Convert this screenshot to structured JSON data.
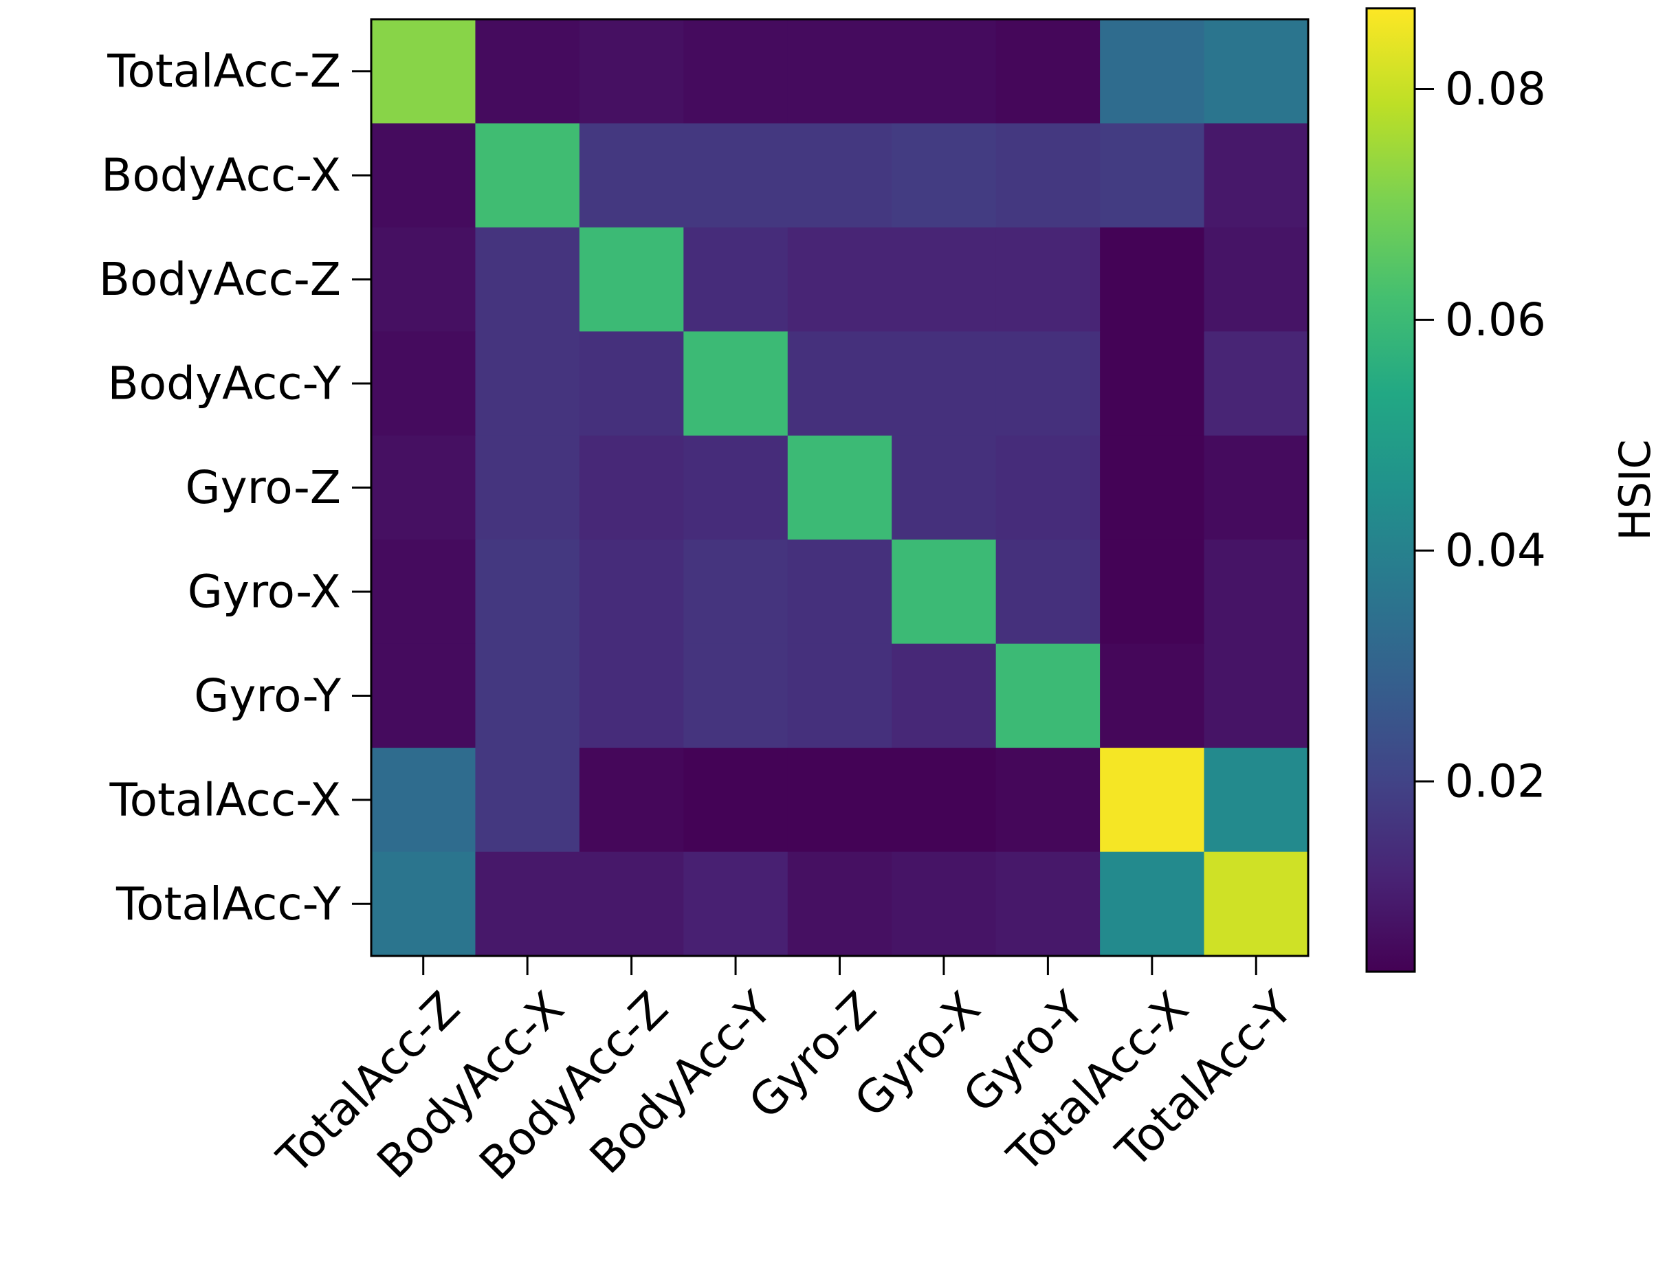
{
  "chart_data": {
    "type": "heatmap",
    "title": "",
    "xlabel": "",
    "ylabel": "",
    "row_labels": [
      "TotalAcc-Z",
      "BodyAcc-X",
      "BodyAcc-Z",
      "BodyAcc-Y",
      "Gyro-Z",
      "Gyro-X",
      "Gyro-Y",
      "TotalAcc-X",
      "TotalAcc-Y"
    ],
    "col_labels": [
      "TotalAcc-Z",
      "BodyAcc-X",
      "BodyAcc-Z",
      "BodyAcc-Y",
      "Gyro-Z",
      "Gyro-X",
      "Gyro-Y",
      "TotalAcc-X",
      "TotalAcc-Y"
    ],
    "values": [
      [
        0.072,
        0.006,
        0.007,
        0.006,
        0.006,
        0.006,
        0.005,
        0.033,
        0.036
      ],
      [
        0.006,
        0.061,
        0.017,
        0.017,
        0.017,
        0.018,
        0.017,
        0.018,
        0.009
      ],
      [
        0.007,
        0.016,
        0.06,
        0.014,
        0.012,
        0.012,
        0.012,
        0.004,
        0.008
      ],
      [
        0.006,
        0.016,
        0.015,
        0.06,
        0.015,
        0.015,
        0.015,
        0.004,
        0.012
      ],
      [
        0.007,
        0.016,
        0.013,
        0.014,
        0.06,
        0.015,
        0.014,
        0.004,
        0.006
      ],
      [
        0.006,
        0.017,
        0.014,
        0.016,
        0.015,
        0.06,
        0.015,
        0.004,
        0.008
      ],
      [
        0.006,
        0.017,
        0.014,
        0.016,
        0.015,
        0.013,
        0.06,
        0.005,
        0.008
      ],
      [
        0.033,
        0.017,
        0.005,
        0.004,
        0.004,
        0.004,
        0.005,
        0.086,
        0.043
      ],
      [
        0.036,
        0.009,
        0.009,
        0.011,
        0.007,
        0.008,
        0.009,
        0.043,
        0.081
      ]
    ],
    "colormap": "viridis",
    "vmin": 0.0035,
    "vmax": 0.087,
    "colorbar": {
      "label": "HSIC",
      "ticks": [
        0.02,
        0.04,
        0.06,
        0.08
      ],
      "tick_labels": [
        "0.02",
        "0.04",
        "0.06",
        "0.08"
      ]
    }
  }
}
